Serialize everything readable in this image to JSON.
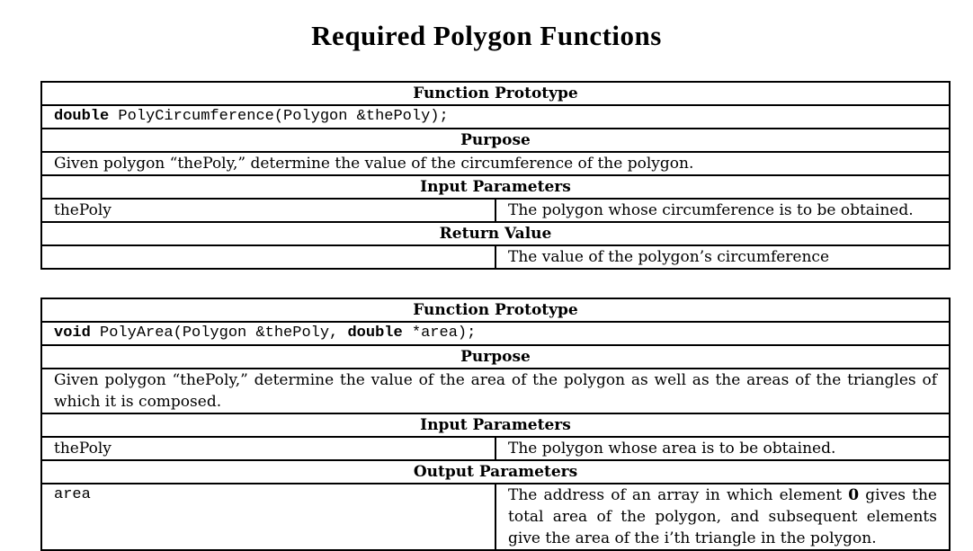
{
  "colors": {
    "background": "#ffffff",
    "text": "#000000",
    "table_border": "#000000"
  },
  "page": {
    "title": "Required Polygon Functions"
  },
  "tables": [
    {
      "section_headers": {
        "prototype": "Function Prototype",
        "purpose": "Purpose",
        "params": "Input Parameters",
        "result": "Return Value"
      },
      "prototype": {
        "seg0": "double",
        "seg1": " PolyCircumference(Polygon &thePoly);"
      },
      "purpose_text": "Given polygon “thePoly,” determine the value of the circumference of the polygon.",
      "param": {
        "name": "thePoly",
        "desc": "The polygon whose circumference is to be obtained."
      },
      "result": {
        "name": "",
        "desc": "The value of the polygon’s circumference"
      }
    },
    {
      "section_headers": {
        "prototype": "Function Prototype",
        "purpose": "Purpose",
        "params": "Input Parameters",
        "result": "Output Parameters"
      },
      "prototype": {
        "seg0": "void",
        "seg1": " PolyArea(Polygon &thePoly, ",
        "seg2": "double",
        "seg3": " *area);"
      },
      "purpose_text": "Given polygon “thePoly,” determine the value of the area of the polygon as well as the areas of the triangles of which it is composed.",
      "param": {
        "name": "thePoly",
        "desc": "The polygon whose area is to be obtained."
      },
      "result": {
        "name": "area",
        "desc_pre": "The address of an array in which element ",
        "desc_bold": "0",
        "desc_post": " gives the total area of the polygon, and subsequent elements give the area of the i’th triangle in the polygon."
      }
    }
  ]
}
